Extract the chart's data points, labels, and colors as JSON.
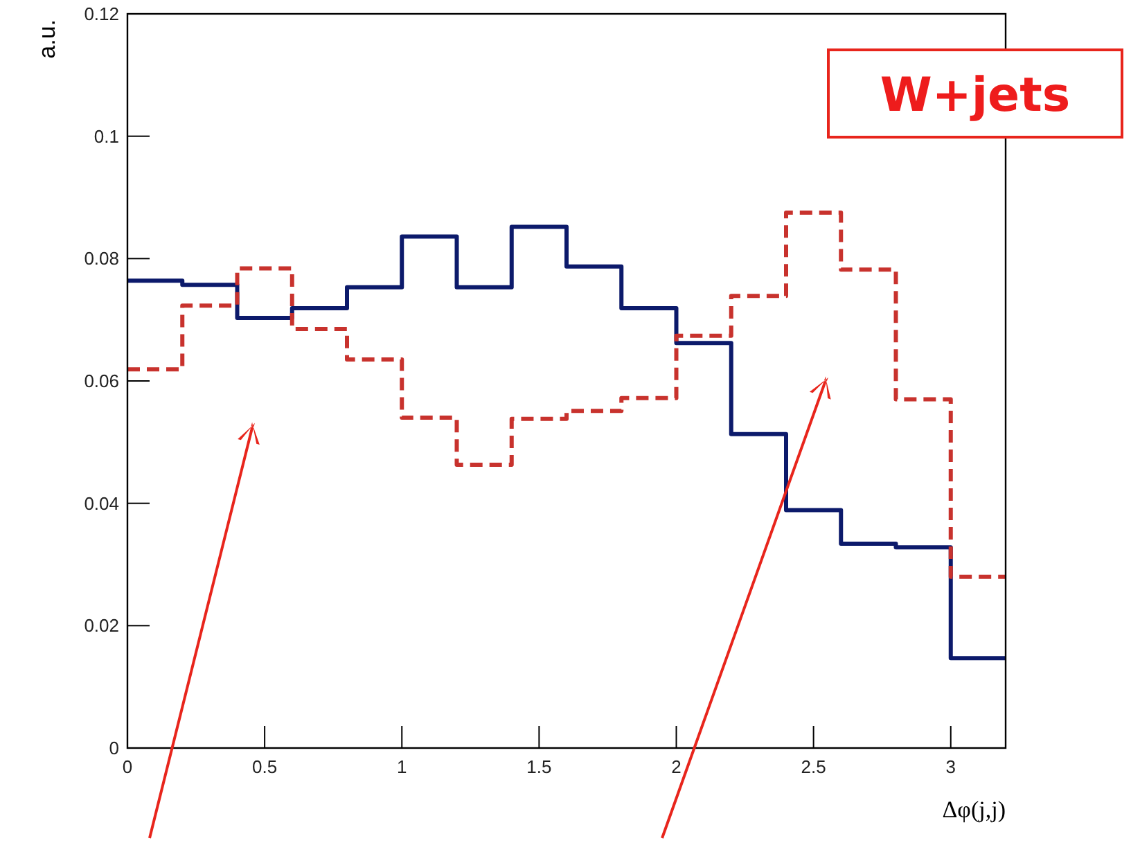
{
  "chart_data": {
    "type": "histogram",
    "xlabel": "Δφ(j,j)",
    "ylabel": "a.u.",
    "annotations": [
      "W+jets"
    ],
    "bins": [
      0,
      0.2,
      0.4,
      0.6,
      0.8,
      1.0,
      1.2,
      1.4,
      1.6,
      1.8,
      2.0,
      2.2,
      2.4,
      2.6,
      2.8,
      3.0,
      3.2
    ],
    "series": [
      {
        "color": "#0c1a6b",
        "line_style": "solid",
        "values": [
          0.0764,
          0.0757,
          0.0703,
          0.0719,
          0.0753,
          0.0836,
          0.0753,
          0.0852,
          0.0787,
          0.0719,
          0.0662,
          0.0513,
          0.0389,
          0.0334,
          0.0328,
          0.0147
        ]
      },
      {
        "color": "#c8322d",
        "line_style": "dashed",
        "values": [
          0.0619,
          0.0723,
          0.0784,
          0.0685,
          0.0635,
          0.054,
          0.0463,
          0.0538,
          0.0551,
          0.0572,
          0.0674,
          0.0739,
          0.0875,
          0.0782,
          0.057,
          0.028
        ]
      }
    ],
    "xlim": [
      0,
      3.2
    ],
    "ylim": [
      0,
      0.12
    ],
    "xticks": [
      0,
      0.5,
      1,
      1.5,
      2,
      2.5,
      3
    ],
    "yticks": [
      0,
      0.02,
      0.04,
      0.06,
      0.08,
      0.1,
      0.12
    ]
  }
}
